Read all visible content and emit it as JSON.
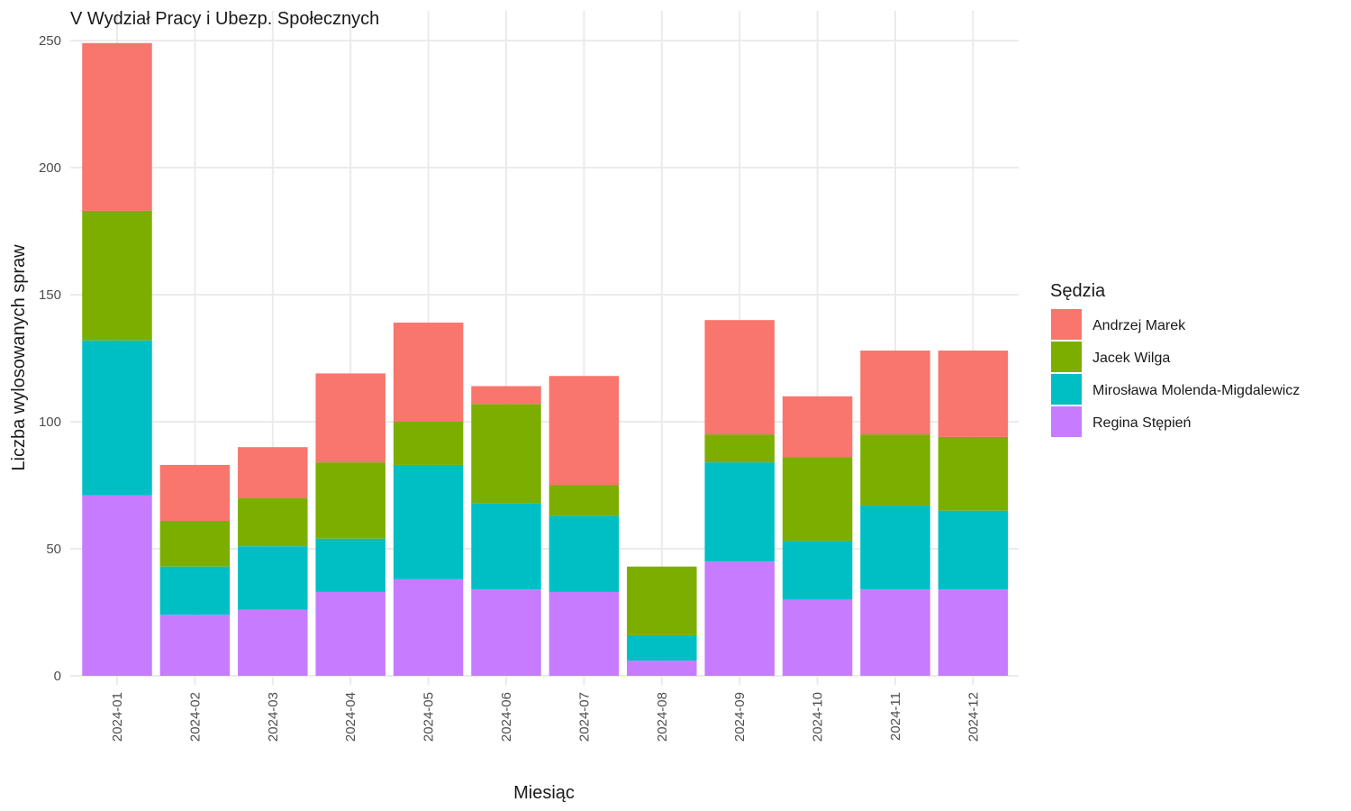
{
  "chart_data": {
    "type": "bar",
    "stacked": true,
    "title": "V Wydział Pracy i Ubezp. Społecznych",
    "xlabel": "Miesiąc",
    "ylabel": "Liczba wylosowanych spraw",
    "ylim": [
      0,
      250
    ],
    "yticks": [
      0,
      50,
      100,
      150,
      200,
      250
    ],
    "grid": true,
    "legend_position": "right",
    "legend_title": "Sędzia",
    "categories": [
      "2024-01",
      "2024-02",
      "2024-03",
      "2024-04",
      "2024-05",
      "2024-06",
      "2024-07",
      "2024-08",
      "2024-09",
      "2024-10",
      "2024-11",
      "2024-12"
    ],
    "series": [
      {
        "name": "Regina Stępień",
        "color": "#C77CFF",
        "values": [
          71,
          24,
          26,
          33,
          38,
          34,
          33,
          6,
          45,
          30,
          34,
          34
        ]
      },
      {
        "name": "Mirosława Molenda-Migdalewicz",
        "color": "#00BFC4",
        "values": [
          61,
          19,
          25,
          21,
          45,
          34,
          30,
          10,
          39,
          23,
          33,
          31
        ]
      },
      {
        "name": "Jacek Wilga",
        "color": "#7CAE00",
        "values": [
          51,
          18,
          19,
          30,
          17,
          39,
          12,
          27,
          11,
          33,
          28,
          29
        ]
      },
      {
        "name": "Andrzej Marek",
        "color": "#F8766D",
        "values": [
          66,
          22,
          20,
          35,
          39,
          7,
          43,
          0,
          45,
          24,
          33,
          34
        ]
      }
    ],
    "legend_order": [
      "Andrzej Marek",
      "Jacek Wilga",
      "Mirosława Molenda-Migdalewicz",
      "Regina Stępień"
    ]
  }
}
